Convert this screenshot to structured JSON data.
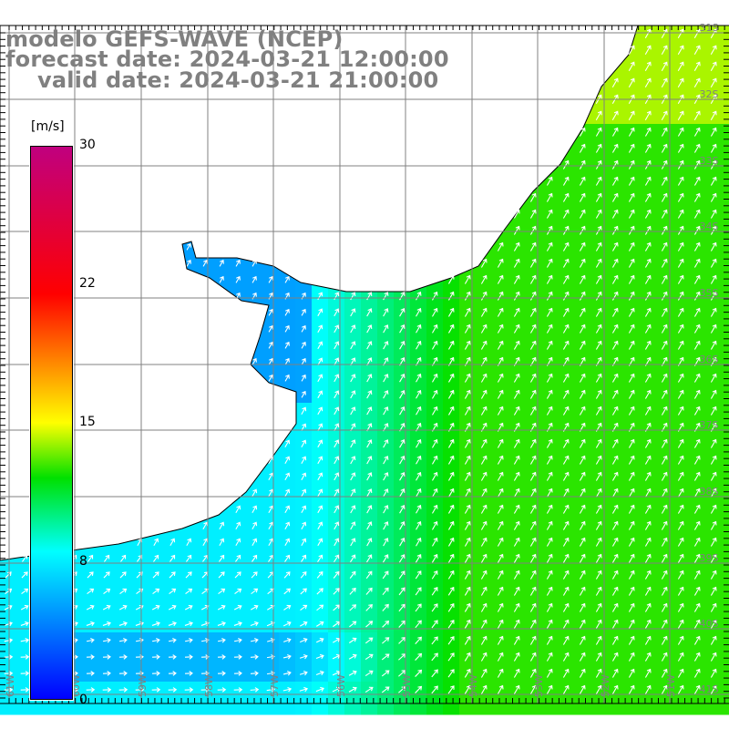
{
  "title": {
    "line1": "modelo GEFS-WAVE (NCEP)",
    "line2": "forecast date: 2024-03-21 12:00:00",
    "line3": "valid date: 2024-03-21 21:00:00"
  },
  "colorbar": {
    "unit": "[m/s]",
    "ticks": [
      "30",
      "22",
      "15",
      "8",
      "0"
    ],
    "tick_values": [
      30,
      22,
      15,
      8,
      0
    ],
    "colors": [
      "#0000ff",
      "#00ffff",
      "#00e000",
      "#ffff00",
      "#ff0000",
      "#c0007f"
    ]
  },
  "axes": {
    "lon_labels": [
      "61W",
      "60W",
      "59W",
      "58W",
      "57W",
      "56W",
      "55W",
      "54W",
      "53W",
      "52W",
      "51W"
    ],
    "lat_labels": [
      "31S",
      "32S",
      "33S",
      "34S",
      "35S",
      "36S",
      "37S",
      "38S",
      "39S",
      "40S",
      "41S"
    ]
  },
  "variable": "wind speed and direction"
}
